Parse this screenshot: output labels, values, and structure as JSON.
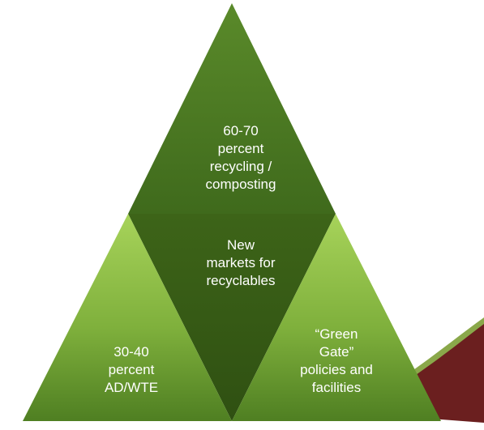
{
  "diagram": {
    "top_triangle": {
      "text": "60-70\npercent\nrecycling /\ncomposting"
    },
    "center_triangle": {
      "text": "New\nmarkets for\nrecyclables"
    },
    "left_triangle": {
      "text": "30-40\npercent\nAD/WTE"
    },
    "right_triangle": {
      "text": "“Green\nGate”\npolicies and\nfacilities"
    }
  },
  "colors": {
    "top_fill": "#4c7a24",
    "center_fill": "#385c19",
    "side_fill_light": "#97c54d",
    "side_fill_dark": "#5e8a2c",
    "accent_swoosh": "#6b1f1f"
  }
}
